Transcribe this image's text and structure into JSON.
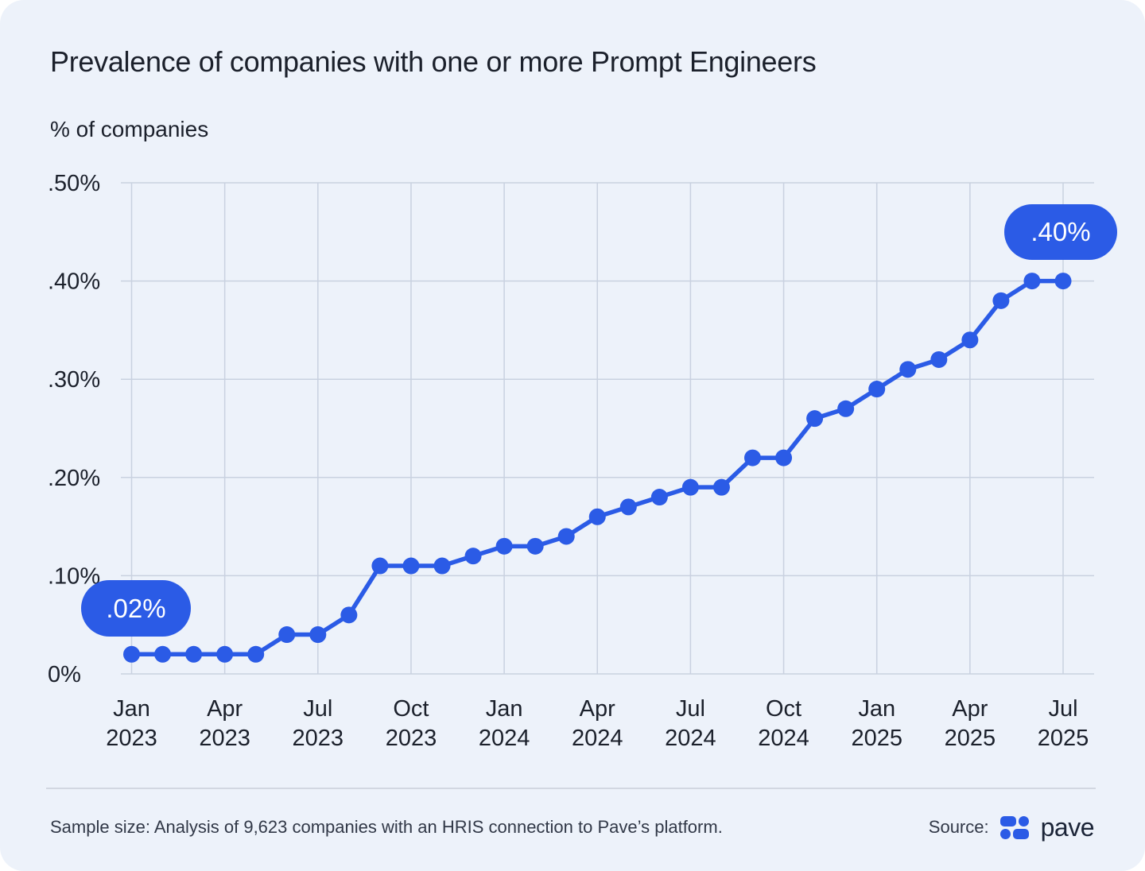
{
  "chart_data": {
    "type": "line",
    "title": "Prevalence of companies with one or more Prompt Engineers",
    "ylabel": "% of companies",
    "xlabel": "",
    "ylim": [
      0,
      0.5
    ],
    "grid": true,
    "legend": "none",
    "y_ticks": [
      ".50%",
      ".40%",
      ".30%",
      ".20%",
      ".10%",
      "0%"
    ],
    "x": [
      "Jan 2023",
      "Feb 2023",
      "Mar 2023",
      "Apr 2023",
      "May 2023",
      "Jun 2023",
      "Jul 2023",
      "Aug 2023",
      "Sep 2023",
      "Oct 2023",
      "Nov 2023",
      "Dec 2023",
      "Jan 2024",
      "Feb 2024",
      "Mar 2024",
      "Apr 2024",
      "May 2024",
      "Jun 2024",
      "Jul 2024",
      "Aug 2024",
      "Sep 2024",
      "Oct 2024",
      "Nov 2024",
      "Dec 2024",
      "Jan 2025",
      "Feb 2025",
      "Mar 2025",
      "Apr 2025",
      "May 2025",
      "Jun 2025",
      "Jul 2025"
    ],
    "values": [
      0.02,
      0.02,
      0.02,
      0.02,
      0.02,
      0.04,
      0.04,
      0.06,
      0.11,
      0.11,
      0.11,
      0.12,
      0.13,
      0.13,
      0.14,
      0.16,
      0.17,
      0.18,
      0.19,
      0.19,
      0.22,
      0.22,
      0.26,
      0.27,
      0.29,
      0.31,
      0.32,
      0.34,
      0.38,
      0.4,
      0.4
    ],
    "x_tick_labels": [
      {
        "month": "Jan",
        "year": "2023"
      },
      {
        "month": "Apr",
        "year": "2023"
      },
      {
        "month": "Jul",
        "year": "2023"
      },
      {
        "month": "Oct",
        "year": "2023"
      },
      {
        "month": "Jan",
        "year": "2024"
      },
      {
        "month": "Apr",
        "year": "2024"
      },
      {
        "month": "Jul",
        "year": "2024"
      },
      {
        "month": "Oct",
        "year": "2024"
      },
      {
        "month": "Jan",
        "year": "2025"
      },
      {
        "month": "Apr",
        "year": "2025"
      },
      {
        "month": "Jul",
        "year": "2025"
      }
    ],
    "annotations": [
      {
        "label": ".02%",
        "x": "Jan 2023",
        "value": 0.02
      },
      {
        "label": ".40%",
        "x": "Jul 2025",
        "value": 0.4
      }
    ]
  },
  "footer": {
    "sample_size": "Sample size: Analysis of 9,623 companies with an HRIS connection to Pave’s platform.",
    "source_label": "Source:",
    "brand": "pave"
  },
  "colors": {
    "accent": "#2B5BE6",
    "grid": "#C9D1E0",
    "ink": "#1B202B",
    "muted": "#313847",
    "card_bg": "#EDF2FA",
    "divider": "#D2D7E1",
    "badge_text": "#FFFFFF",
    "brand_ink": "#1B2437"
  }
}
